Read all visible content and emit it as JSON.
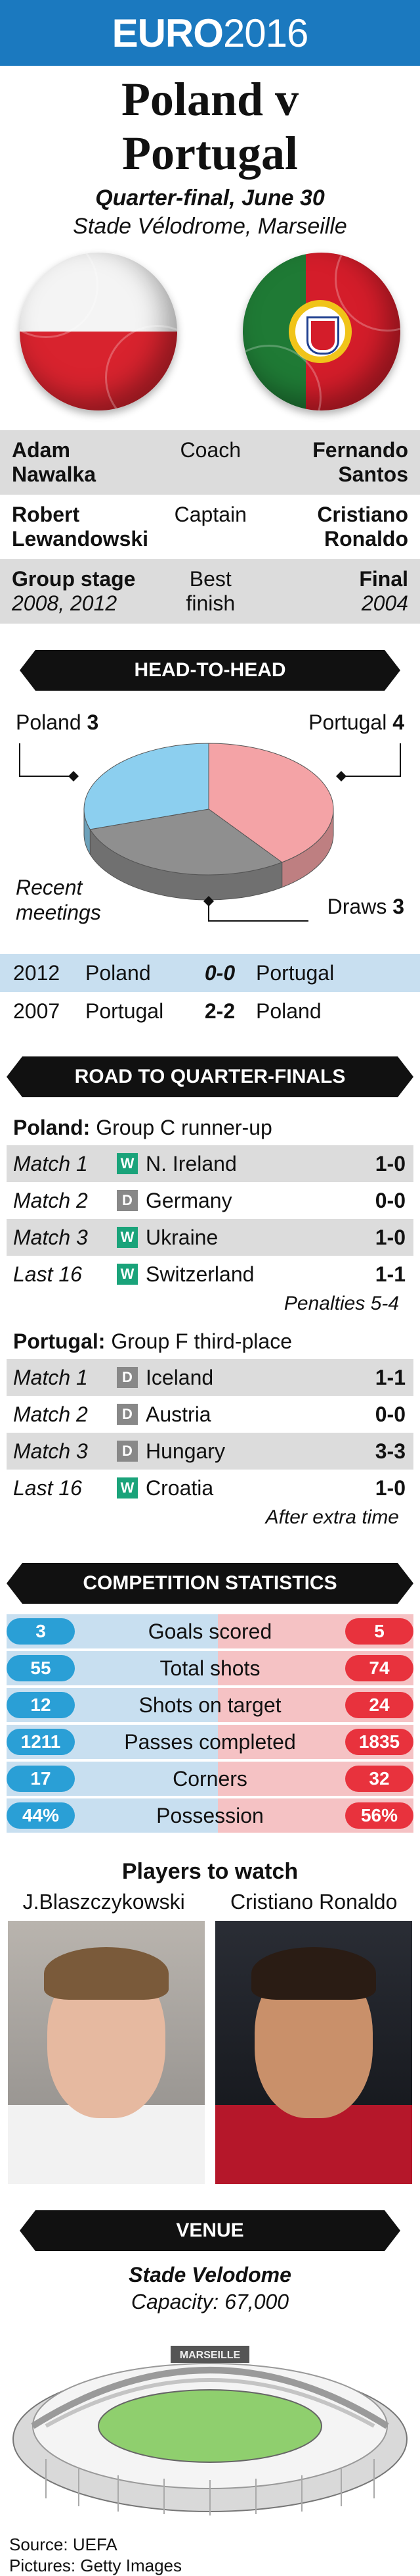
{
  "banner": {
    "brand": "EURO",
    "year": "2016"
  },
  "title": {
    "line1": "Poland v",
    "line2": "Portugal"
  },
  "subtitle": "Quarter-final, June 30",
  "venue_line": "Stade Vélodrome, Marseille",
  "info_rows": [
    {
      "left": "Adam Nawalka",
      "centre": "Coach",
      "right": "Fernando Santos",
      "shaded": true
    },
    {
      "left": "Robert Lewandowski",
      "centre": "Captain",
      "right": "Cristiano Ronaldo",
      "shaded": false
    },
    {
      "left": "Group stage",
      "left_sub": "2008, 2012",
      "centre": "Best finish",
      "right": "Final",
      "right_sub": "2004",
      "shaded": true
    }
  ],
  "head_to_head": {
    "header": "HEAD-TO-HEAD",
    "poland_label": "Poland",
    "poland_wins": "3",
    "portugal_label": "Portugal",
    "portugal_wins": "4",
    "draws_label": "Draws",
    "draws": "3",
    "recent_label_1": "Recent",
    "recent_label_2": "meetings",
    "colors": {
      "poland": "#8ccfef",
      "portugal": "#f4a3a6",
      "draws": "#8f8f8f"
    },
    "meetings": [
      {
        "year": "2012",
        "home": "Poland",
        "score": "0-0",
        "away": "Portugal"
      },
      {
        "year": "2007",
        "home": "Portugal",
        "score": "2-2",
        "away": "Poland"
      }
    ]
  },
  "road": {
    "header": "ROAD TO QUARTER-FINALS",
    "teams": [
      {
        "name": "Poland:",
        "group": "Group C runner-up",
        "matches": [
          {
            "label": "Match 1",
            "res": "W",
            "opp": "N. Ireland",
            "score": "1-0"
          },
          {
            "label": "Match 2",
            "res": "D",
            "opp": "Germany",
            "score": "0-0"
          },
          {
            "label": "Match 3",
            "res": "W",
            "opp": "Ukraine",
            "score": "1-0"
          },
          {
            "label": "Last 16",
            "res": "W",
            "opp": "Switzerland",
            "score": "1-1"
          }
        ],
        "note": "Penalties 5-4"
      },
      {
        "name": "Portugal:",
        "group": "Group F third-place",
        "matches": [
          {
            "label": "Match 1",
            "res": "D",
            "opp": "Iceland",
            "score": "1-1"
          },
          {
            "label": "Match 2",
            "res": "D",
            "opp": "Austria",
            "score": "0-0"
          },
          {
            "label": "Match 3",
            "res": "D",
            "opp": "Hungary",
            "score": "3-3"
          },
          {
            "label": "Last 16",
            "res": "W",
            "opp": "Croatia",
            "score": "1-0"
          }
        ],
        "note": "After extra time"
      }
    ]
  },
  "stats": {
    "header": "COMPETITION STATISTICS",
    "rows": [
      {
        "name": "Goals scored",
        "poland": "3",
        "portugal": "5"
      },
      {
        "name": "Total shots",
        "poland": "55",
        "portugal": "74"
      },
      {
        "name": "Shots on target",
        "poland": "12",
        "portugal": "24"
      },
      {
        "name": "Passes completed",
        "poland": "1211",
        "portugal": "1835"
      },
      {
        "name": "Corners",
        "poland": "17",
        "portugal": "32"
      },
      {
        "name": "Possession",
        "poland": "44%",
        "portugal": "56%"
      }
    ]
  },
  "players": {
    "title": "Players to watch",
    "left": "J.Blaszczykowski",
    "right": "Cristiano Ronaldo"
  },
  "venue": {
    "header": "VENUE",
    "name": "Stade Velodome",
    "capacity": "Capacity: 67,000",
    "sign": "MARSEILLE"
  },
  "footer": {
    "source": "Source: UEFA",
    "pictures": "Pictures: Getty Images"
  }
}
